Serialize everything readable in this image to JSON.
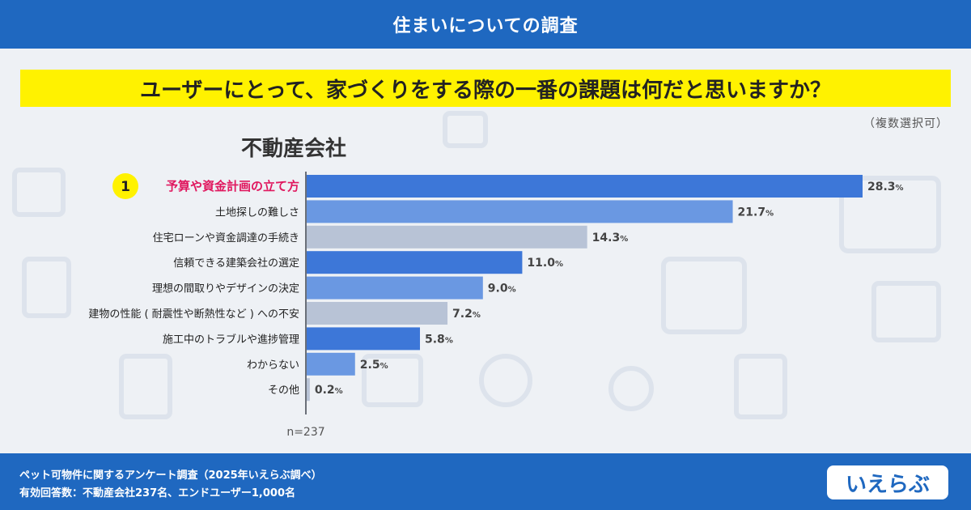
{
  "header": {
    "title": "住まいについての調査"
  },
  "question": "ユーザーにとって、家づくりをする際の一番の課題は何だと思いますか？",
  "note": "（複数選択可）",
  "chart_title": "不動産会社",
  "rank_badge": "1",
  "sample_size": "n=237",
  "footer": {
    "source": "ペット可物件に関するアンケート調査（2025年いえらぶ調べ）",
    "respondents": "有効回答数：不動産会社237名、エンドユーザー1,000名"
  },
  "logo_text": "いえらぶ",
  "colors": {
    "band": "#1f68c0",
    "highlight": "#fff200",
    "rank_text": "#e0185f",
    "bar_dark": "#3d77d8",
    "bar_mid": "#6a98e2",
    "bar_light": "#b8c3d6"
  },
  "chart_data": {
    "type": "bar",
    "orientation": "horizontal",
    "title": "不動産会社",
    "categories": [
      "予算や資金計画の立て方",
      "土地探しの難しさ",
      "住宅ローンや資金調達の手続き",
      "信頼できる建築会社の選定",
      "理想の間取りやデザインの決定",
      "建物の性能 ( 耐震性や断熱性など ) への不安",
      "施工中のトラブルや進捗管理",
      "わからない",
      "その他"
    ],
    "values": [
      28.3,
      21.7,
      14.3,
      11.0,
      9.0,
      7.2,
      5.8,
      2.5,
      0.2
    ],
    "labels": [
      "28.3",
      "21.7",
      "14.3",
      "11.0",
      "9.0",
      "7.2",
      "5.8",
      "2.5",
      "0.2"
    ],
    "unit": "%",
    "bar_color_keys": [
      "bar_dark",
      "bar_mid",
      "bar_light",
      "bar_dark",
      "bar_mid",
      "bar_light",
      "bar_dark",
      "bar_mid",
      "bar_light"
    ],
    "xlim": [
      0,
      30
    ],
    "grid": false,
    "legend": "none"
  }
}
